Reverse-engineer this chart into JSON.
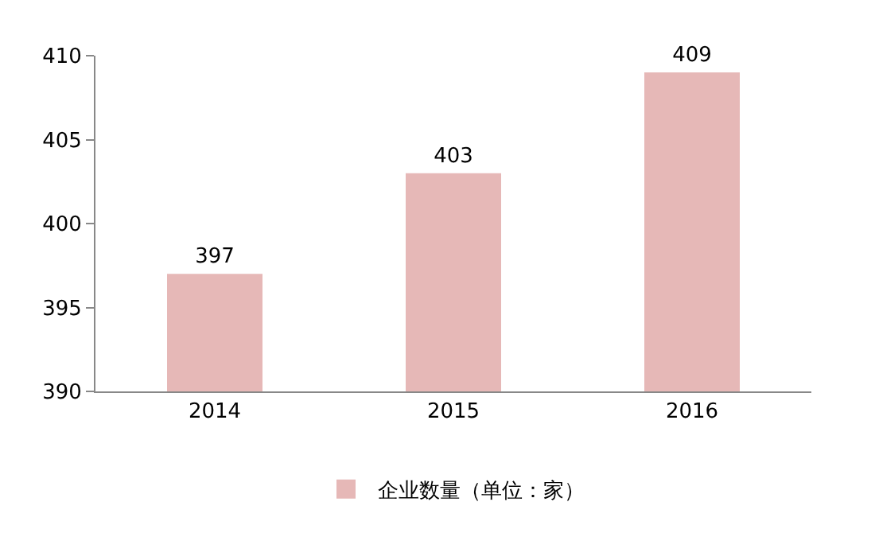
{
  "chart_data": {
    "type": "bar",
    "categories": [
      "2014",
      "2015",
      "2016"
    ],
    "series": [
      {
        "name": "企业数量（单位：家）",
        "color": "#e6b8b7",
        "values": [
          397,
          403,
          409
        ]
      }
    ],
    "ylim": [
      390,
      410
    ],
    "yticks": [
      390,
      395,
      400,
      405,
      410
    ],
    "grid": false,
    "legend": "bottom",
    "data_labels": true
  }
}
